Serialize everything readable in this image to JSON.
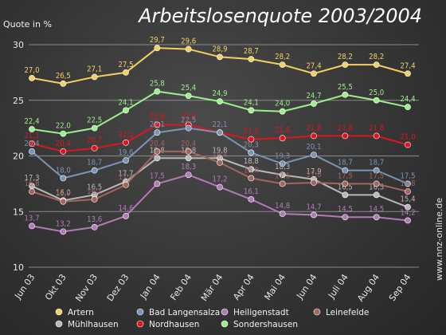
{
  "chart_data": {
    "type": "line",
    "title": "Arbeitslosenquote 2003/2004",
    "ylabel": "Quote in %",
    "xlabel": "",
    "ylim": [
      10,
      30
    ],
    "yticks": [
      10,
      15,
      20,
      25,
      30
    ],
    "grid": true,
    "legend_position": "bottom",
    "categories": [
      "Jun 03",
      "Okt 03",
      "Nov 03",
      "Dez 03",
      "Jan 04",
      "Feb 04",
      "Mär 04",
      "Apr 04",
      "Mai 04",
      "Jun 04",
      "Juli 04",
      "Aug 04",
      "Sep 04"
    ],
    "series": [
      {
        "name": "Artern",
        "color": "#f3d062",
        "values": [
          27.0,
          26.5,
          27.1,
          27.5,
          29.7,
          29.6,
          28.9,
          28.7,
          28.2,
          27.4,
          28.2,
          28.2,
          27.4
        ],
        "labels": [
          "27,0",
          "26,5",
          "27,1",
          "27,5",
          "29,7",
          "29,6",
          "28,9",
          "28,7",
          "28,2",
          "27,4",
          "28,2",
          "28,2",
          "27,4"
        ]
      },
      {
        "name": "Sondershausen",
        "color": "#9af08a",
        "values": [
          22.4,
          22.0,
          22.5,
          24.1,
          25.8,
          25.4,
          24.9,
          24.1,
          24.0,
          24.7,
          25.5,
          25.0,
          24.4
        ],
        "labels": [
          "22,4",
          "22,0",
          "22,5",
          "24,1",
          "25,8",
          "25,4",
          "24,9",
          "24,1",
          "24,0",
          "24,7",
          "25,5",
          "25,0",
          "24,4"
        ]
      },
      {
        "name": "Nordhausen",
        "color": "#e0141e",
        "values": [
          21.1,
          20.4,
          20.7,
          21.2,
          22.8,
          22.8,
          22.1,
          21.5,
          21.6,
          21.8,
          21.8,
          21.8,
          21.0
        ],
        "labels": [
          "21,1",
          "20,4",
          "20,7",
          "21,2",
          "22,8",
          "22,8",
          "22,1",
          "21,5",
          "21,6",
          "21,8",
          "21,8",
          "21,8",
          "21,0"
        ]
      },
      {
        "name": "Bad Langensalza",
        "color": "#7b93b5",
        "values": [
          20.4,
          18.0,
          18.7,
          19.6,
          22.1,
          22.5,
          22.1,
          20.3,
          19.3,
          20.1,
          18.7,
          18.7,
          17.5
        ],
        "labels": [
          "20,4",
          "18,0",
          "18,7",
          "19,6",
          "22,1",
          "22,5",
          "22,1",
          "20,3",
          "19,3",
          "20,1",
          "18,7",
          "18,7",
          "17,5"
        ]
      },
      {
        "name": "Mühlhausen",
        "color": "#b8b8b8",
        "values": [
          17.3,
          16.0,
          16.5,
          17.7,
          19.8,
          19.8,
          19.8,
          18.8,
          18.3,
          17.9,
          16.5,
          16.5,
          15.4
        ],
        "labels": [
          "17,3",
          "16,0",
          "16,5",
          "17,7",
          "19,8",
          "19,8",
          "19,8",
          "18,8",
          "18,3",
          "17,9",
          "16,5",
          "16,5",
          "15,4"
        ]
      },
      {
        "name": "Leinefelde",
        "color": "#a4655e",
        "values": [
          16.8,
          15.9,
          16.1,
          17.4,
          20.4,
          20.4,
          19.4,
          18.0,
          17.5,
          17.6,
          17.5,
          17.5,
          16.8
        ],
        "labels": [
          "16,8",
          "15,9",
          "16,1",
          "17,4",
          "20,4",
          "20,4",
          "19,4",
          "18,0",
          "17,5",
          "17,6",
          "17,5",
          "17,5",
          "16,8"
        ]
      },
      {
        "name": "Heiligenstadt",
        "color": "#b27ab7",
        "values": [
          13.7,
          13.2,
          13.6,
          14.6,
          17.5,
          18.3,
          17.2,
          16.1,
          14.8,
          14.7,
          14.5,
          14.5,
          14.2
        ],
        "labels": [
          "13,7",
          "13,2",
          "13,6",
          "14,6",
          "17,5",
          "18,3",
          "17,2",
          "16,1",
          "14,8",
          "14,7",
          "14,5",
          "14,5",
          "14,2"
        ]
      }
    ],
    "legend": [
      {
        "name": "Artern",
        "color": "#f3d062"
      },
      {
        "name": "Bad Langensalza",
        "color": "#7b93b5"
      },
      {
        "name": "Heiligenstadt",
        "color": "#b27ab7"
      },
      {
        "name": "Leinefelde",
        "color": "#a4655e"
      },
      {
        "name": "Mühlhausen",
        "color": "#b8b8b8"
      },
      {
        "name": "Nordhausen",
        "color": "#e0141e"
      },
      {
        "name": "Sondershausen",
        "color": "#9af08a"
      }
    ]
  },
  "watermark": "www.nnz-online.de"
}
